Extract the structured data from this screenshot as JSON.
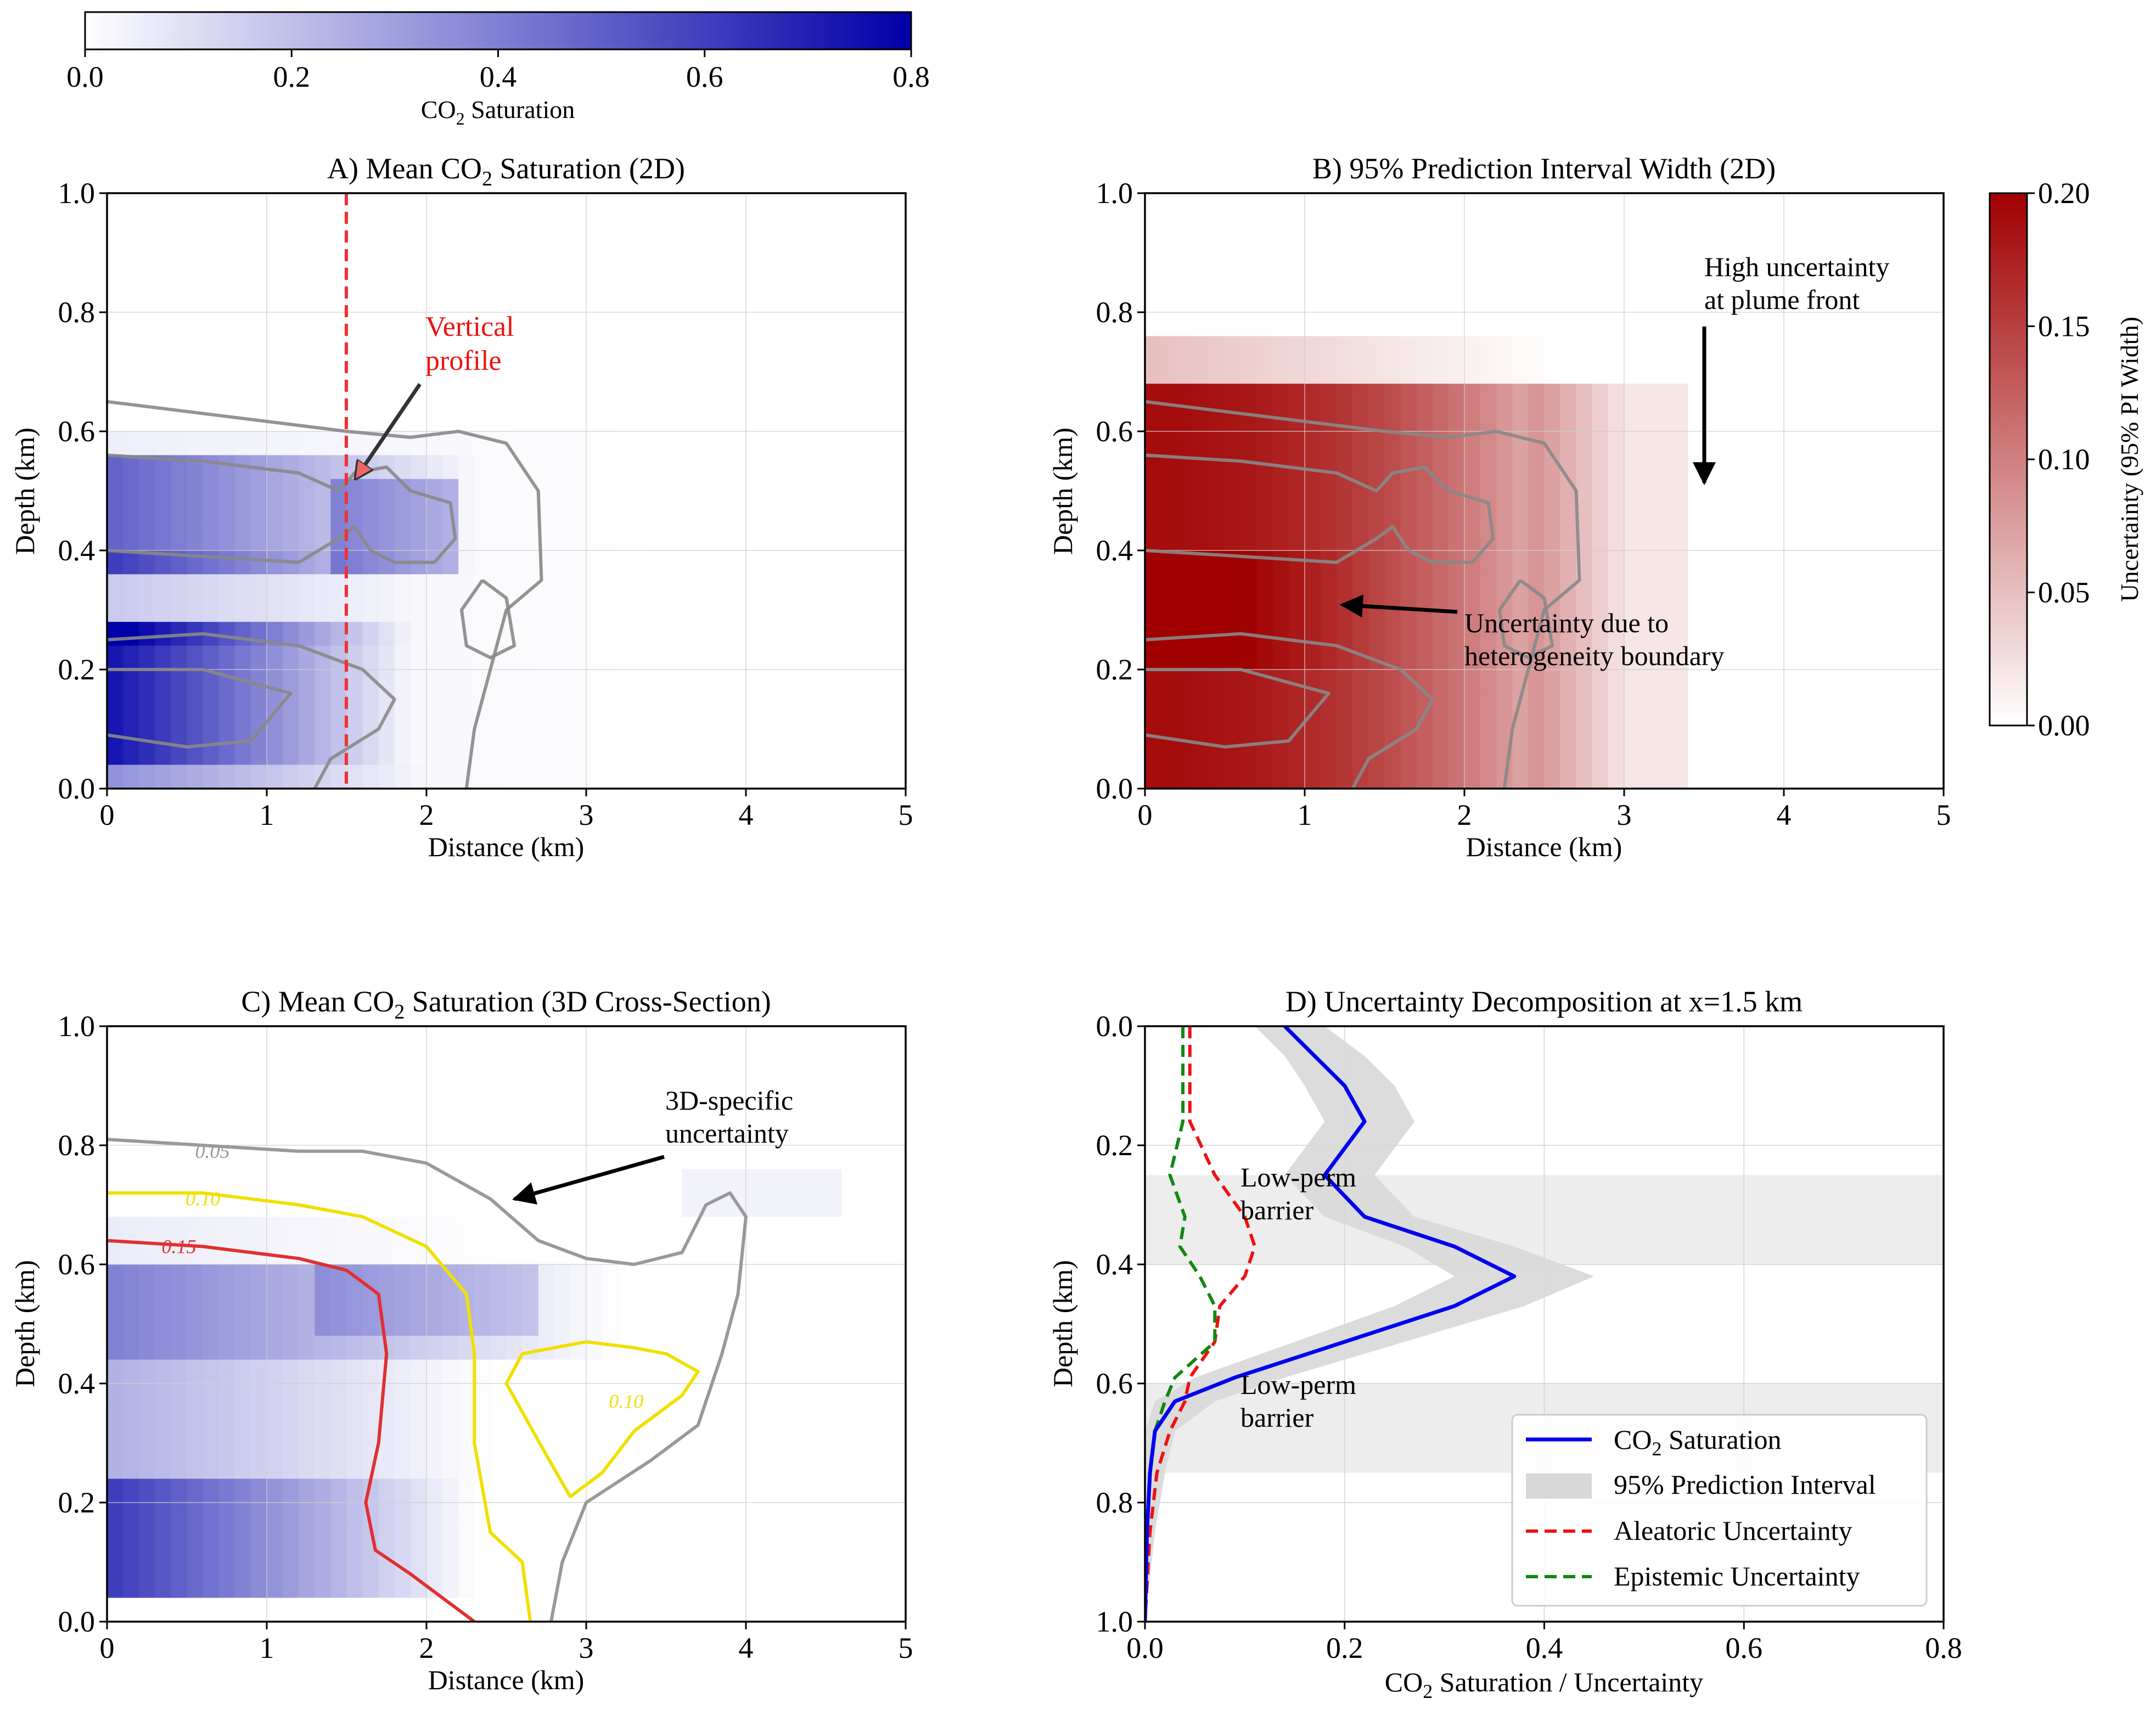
{
  "colorbar_blue": {
    "label_prefix": "CO",
    "label_sub": "2",
    "label_suffix": " Saturation",
    "ticks": [
      "0.0",
      "0.2",
      "0.4",
      "0.6",
      "0.8"
    ],
    "range": [
      0,
      0.8
    ],
    "color_low": "#ffffff",
    "color_high": "#0000a8"
  },
  "colorbar_red": {
    "label": "Uncertainty (95% PI Width)",
    "ticks": [
      "0.00",
      "0.05",
      "0.10",
      "0.15",
      "0.20"
    ],
    "range": [
      0,
      0.2
    ],
    "color_low": "#ffffff",
    "color_high": "#a00000"
  },
  "annotations": {
    "vertical_profile": [
      "Vertical",
      "profile"
    ],
    "high_uncertainty": [
      "High uncertainty",
      "at plume front"
    ],
    "heterogeneity": [
      "Uncertainty due to",
      "heterogeneity boundary"
    ],
    "specific_3d": [
      "3D-specific",
      "uncertainty"
    ],
    "low_perm_1": [
      "Low-perm",
      "barrier"
    ],
    "low_perm_2": [
      "Low-perm",
      "barrier"
    ]
  },
  "chart_data": [
    {
      "id": "A",
      "type": "heatmap",
      "title_prefix": "A) Mean CO",
      "title_sub": "2",
      "title_suffix": " Saturation (2D)",
      "xlabel": "Distance (km)",
      "ylabel": "Depth (km)",
      "xlim": [
        0,
        5
      ],
      "ylim": [
        0,
        1
      ],
      "xticks": [
        "0",
        "1",
        "2",
        "3",
        "4",
        "5"
      ],
      "yticks": [
        "0.0",
        "0.2",
        "0.4",
        "0.6",
        "0.8",
        "1.0"
      ],
      "profile_x": 1.5,
      "contours": [
        {
          "level": "outer",
          "points": [
            [
              0,
              0.65
            ],
            [
              0.6,
              0.63
            ],
            [
              1.2,
              0.61
            ],
            [
              1.5,
              0.6
            ],
            [
              1.9,
              0.59
            ],
            [
              2.2,
              0.6
            ],
            [
              2.5,
              0.58
            ],
            [
              2.7,
              0.5
            ],
            [
              2.72,
              0.35
            ],
            [
              2.5,
              0.3
            ],
            [
              2.4,
              0.2
            ],
            [
              2.3,
              0.1
            ],
            [
              2.25,
              0
            ]
          ]
        },
        {
          "level": "upper",
          "points": [
            [
              0,
              0.56
            ],
            [
              0.6,
              0.55
            ],
            [
              1.2,
              0.53
            ],
            [
              1.45,
              0.5
            ],
            [
              1.55,
              0.53
            ],
            [
              1.75,
              0.54
            ],
            [
              1.9,
              0.5
            ],
            [
              2.15,
              0.48
            ],
            [
              2.18,
              0.42
            ],
            [
              2.05,
              0.38
            ],
            [
              1.8,
              0.38
            ],
            [
              1.65,
              0.4
            ],
            [
              1.55,
              0.44
            ],
            [
              1.45,
              0.42
            ],
            [
              1.2,
              0.38
            ],
            [
              0.6,
              0.39
            ],
            [
              0,
              0.4
            ]
          ]
        },
        {
          "level": "lower",
          "points": [
            [
              0,
              0.25
            ],
            [
              0.6,
              0.26
            ],
            [
              1.2,
              0.24
            ],
            [
              1.6,
              0.2
            ],
            [
              1.8,
              0.15
            ],
            [
              1.7,
              0.1
            ],
            [
              1.4,
              0.05
            ],
            [
              1.3,
              0
            ]
          ]
        },
        {
          "level": "lower-inner",
          "points": [
            [
              0,
              0.2
            ],
            [
              0.6,
              0.2
            ],
            [
              1.15,
              0.16
            ],
            [
              0.9,
              0.08
            ],
            [
              0.5,
              0.07
            ],
            [
              0,
              0.09
            ]
          ]
        },
        {
          "level": "island",
          "points": [
            [
              2.35,
              0.35
            ],
            [
              2.5,
              0.32
            ],
            [
              2.55,
              0.24
            ],
            [
              2.4,
              0.22
            ],
            [
              2.25,
              0.24
            ],
            [
              2.22,
              0.3
            ],
            [
              2.35,
              0.35
            ]
          ]
        }
      ]
    },
    {
      "id": "B",
      "type": "heatmap",
      "title": "B) 95% Prediction Interval Width (2D)",
      "xlabel": "Distance (km)",
      "ylabel": "Depth (km)",
      "xlim": [
        0,
        5
      ],
      "ylim": [
        0,
        1
      ],
      "xticks": [
        "0",
        "1",
        "2",
        "3",
        "4",
        "5"
      ],
      "yticks": [
        "0.0",
        "0.2",
        "0.4",
        "0.6",
        "0.8",
        "1.0"
      ],
      "contours": [
        {
          "level": "outer",
          "points": [
            [
              0,
              0.65
            ],
            [
              0.6,
              0.63
            ],
            [
              1.2,
              0.61
            ],
            [
              1.5,
              0.6
            ],
            [
              1.9,
              0.59
            ],
            [
              2.2,
              0.6
            ],
            [
              2.5,
              0.58
            ],
            [
              2.7,
              0.5
            ],
            [
              2.72,
              0.35
            ],
            [
              2.5,
              0.3
            ],
            [
              2.4,
              0.2
            ],
            [
              2.3,
              0.1
            ],
            [
              2.25,
              0
            ]
          ]
        },
        {
          "level": "upper",
          "points": [
            [
              0,
              0.56
            ],
            [
              0.6,
              0.55
            ],
            [
              1.2,
              0.53
            ],
            [
              1.45,
              0.5
            ],
            [
              1.55,
              0.53
            ],
            [
              1.75,
              0.54
            ],
            [
              1.9,
              0.5
            ],
            [
              2.15,
              0.48
            ],
            [
              2.18,
              0.42
            ],
            [
              2.05,
              0.38
            ],
            [
              1.8,
              0.38
            ],
            [
              1.65,
              0.4
            ],
            [
              1.55,
              0.44
            ],
            [
              1.45,
              0.42
            ],
            [
              1.2,
              0.38
            ],
            [
              0.6,
              0.39
            ],
            [
              0,
              0.4
            ]
          ]
        },
        {
          "level": "lower",
          "points": [
            [
              0,
              0.25
            ],
            [
              0.6,
              0.26
            ],
            [
              1.2,
              0.24
            ],
            [
              1.6,
              0.2
            ],
            [
              1.8,
              0.15
            ],
            [
              1.7,
              0.1
            ],
            [
              1.4,
              0.05
            ],
            [
              1.3,
              0
            ]
          ]
        },
        {
          "level": "lower-inner",
          "points": [
            [
              0,
              0.2
            ],
            [
              0.6,
              0.2
            ],
            [
              1.15,
              0.16
            ],
            [
              0.9,
              0.08
            ],
            [
              0.5,
              0.07
            ],
            [
              0,
              0.09
            ]
          ]
        },
        {
          "level": "island",
          "points": [
            [
              2.35,
              0.35
            ],
            [
              2.5,
              0.32
            ],
            [
              2.55,
              0.24
            ],
            [
              2.4,
              0.22
            ],
            [
              2.25,
              0.24
            ],
            [
              2.22,
              0.3
            ],
            [
              2.35,
              0.35
            ]
          ]
        }
      ]
    },
    {
      "id": "C",
      "type": "heatmap",
      "title_prefix": "C) Mean CO",
      "title_sub": "2",
      "title_suffix": " Saturation (3D Cross-Section)",
      "xlabel": "Distance (km)",
      "ylabel": "Depth (km)",
      "xlim": [
        0,
        5
      ],
      "ylim": [
        0,
        1
      ],
      "xticks": [
        "0",
        "1",
        "2",
        "3",
        "4",
        "5"
      ],
      "yticks": [
        "0.0",
        "0.2",
        "0.4",
        "0.6",
        "0.8",
        "1.0"
      ],
      "contours": [
        {
          "level": "0.05",
          "label": "0.05",
          "color": "#999999",
          "points": [
            [
              0,
              0.81
            ],
            [
              0.6,
              0.8
            ],
            [
              1.2,
              0.79
            ],
            [
              1.6,
              0.79
            ],
            [
              2.0,
              0.77
            ],
            [
              2.4,
              0.71
            ],
            [
              2.7,
              0.64
            ],
            [
              3.0,
              0.61
            ],
            [
              3.3,
              0.6
            ],
            [
              3.6,
              0.62
            ],
            [
              3.75,
              0.7
            ],
            [
              3.9,
              0.72
            ],
            [
              4.0,
              0.68
            ],
            [
              3.95,
              0.55
            ],
            [
              3.85,
              0.45
            ],
            [
              3.7,
              0.33
            ],
            [
              3.4,
              0.27
            ],
            [
              3.0,
              0.2
            ],
            [
              2.85,
              0.1
            ],
            [
              2.78,
              0
            ]
          ]
        },
        {
          "level": "0.10",
          "label": "0.10",
          "color": "#f0e000",
          "points": [
            [
              0,
              0.72
            ],
            [
              0.6,
              0.72
            ],
            [
              1.2,
              0.7
            ],
            [
              1.6,
              0.68
            ],
            [
              2.0,
              0.63
            ],
            [
              2.25,
              0.55
            ],
            [
              2.3,
              0.45
            ],
            [
              2.3,
              0.3
            ],
            [
              2.4,
              0.15
            ],
            [
              2.6,
              0.1
            ],
            [
              2.65,
              0
            ]
          ]
        },
        {
          "level": "0.10-island",
          "label": "0.10",
          "color": "#f0e000",
          "points": [
            [
              3.0,
              0.47
            ],
            [
              3.3,
              0.46
            ],
            [
              3.5,
              0.45
            ],
            [
              3.7,
              0.42
            ],
            [
              3.6,
              0.38
            ],
            [
              3.3,
              0.32
            ],
            [
              3.1,
              0.25
            ],
            [
              2.9,
              0.21
            ],
            [
              2.75,
              0.28
            ],
            [
              2.5,
              0.4
            ],
            [
              2.6,
              0.45
            ],
            [
              3.0,
              0.47
            ]
          ]
        },
        {
          "level": "0.15",
          "label": "0.15",
          "color": "#e03030",
          "points": [
            [
              0,
              0.64
            ],
            [
              0.6,
              0.63
            ],
            [
              1.2,
              0.61
            ],
            [
              1.5,
              0.59
            ],
            [
              1.7,
              0.55
            ],
            [
              1.75,
              0.45
            ],
            [
              1.7,
              0.3
            ],
            [
              1.62,
              0.2
            ],
            [
              1.68,
              0.12
            ],
            [
              1.9,
              0.08
            ],
            [
              2.3,
              0
            ]
          ]
        }
      ]
    },
    {
      "id": "D",
      "type": "line",
      "title": "D) Uncertainty Decomposition at x=1.5 km",
      "xlabel_prefix": "CO",
      "xlabel_sub": "2",
      "xlabel_suffix": " Saturation / Uncertainty",
      "ylabel": "Depth (km)",
      "xlim": [
        0,
        0.8
      ],
      "ylim": [
        1,
        0
      ],
      "xticks": [
        "0.0",
        "0.2",
        "0.4",
        "0.6",
        "0.8"
      ],
      "yticks": [
        "0.0",
        "0.2",
        "0.4",
        "0.6",
        "0.8",
        "1.0"
      ],
      "barrier_bands": [
        [
          0.25,
          0.4
        ],
        [
          0.6,
          0.75
        ]
      ],
      "depth": [
        0.0,
        0.05,
        0.1,
        0.16,
        0.25,
        0.32,
        0.37,
        0.42,
        0.47,
        0.53,
        0.59,
        0.63,
        0.68,
        0.75,
        0.85,
        1.0
      ],
      "series": [
        {
          "name": "CO2 Saturation",
          "legend_prefix": "CO",
          "legend_sub": "2",
          "legend_suffix": " Saturation",
          "color": "#0000ee",
          "style": "solid",
          "values": [
            0.14,
            0.17,
            0.2,
            0.22,
            0.18,
            0.22,
            0.31,
            0.37,
            0.31,
            0.2,
            0.09,
            0.03,
            0.01,
            0.005,
            0.002,
            0.0
          ]
        },
        {
          "name": "95% Prediction Interval",
          "legend": "95% Prediction Interval",
          "color": "#d8d8d8",
          "style": "band",
          "lower": [
            0.11,
            0.14,
            0.16,
            0.18,
            0.14,
            0.18,
            0.26,
            0.31,
            0.25,
            0.15,
            0.05,
            0.01,
            0.0,
            0.0,
            0.0,
            0.0
          ],
          "upper": [
            0.18,
            0.22,
            0.25,
            0.27,
            0.23,
            0.27,
            0.37,
            0.45,
            0.38,
            0.26,
            0.14,
            0.07,
            0.03,
            0.02,
            0.01,
            0.0
          ]
        },
        {
          "name": "Aleatoric Uncertainty",
          "legend": "Aleatoric Uncertainty",
          "color": "#ee1111",
          "style": "dashed",
          "values": [
            0.045,
            0.045,
            0.045,
            0.045,
            0.07,
            0.1,
            0.11,
            0.1,
            0.075,
            0.07,
            0.045,
            0.04,
            0.025,
            0.012,
            0.005,
            0.0
          ]
        },
        {
          "name": "Epistemic Uncertainty",
          "legend": "Epistemic Uncertainty",
          "color": "#118811",
          "style": "dashed",
          "values": [
            0.038,
            0.038,
            0.038,
            0.038,
            0.025,
            0.04,
            0.035,
            0.055,
            0.07,
            0.07,
            0.03,
            0.02,
            0.01,
            0.005,
            0.002,
            0.0
          ]
        }
      ]
    }
  ]
}
